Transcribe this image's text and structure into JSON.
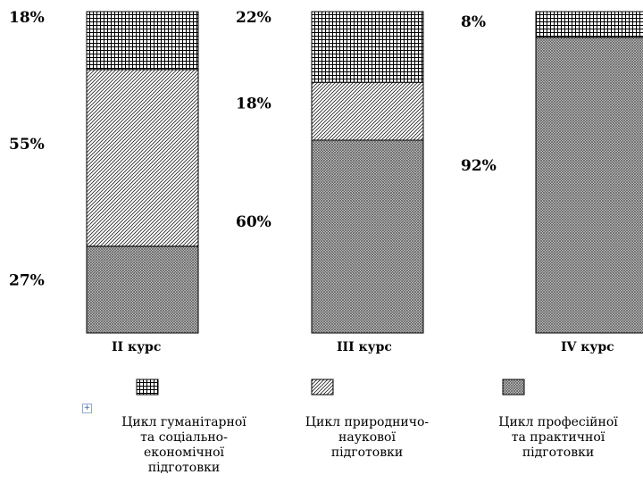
{
  "chart_data": {
    "type": "bar",
    "stacked": true,
    "categories": [
      "II курс",
      "III курс",
      "IV курс"
    ],
    "series": [
      {
        "name": "Цикл професійної та практичної підготовки",
        "pattern": "crosshatch",
        "values": [
          27,
          60,
          92
        ],
        "labels": [
          "27%",
          "60%",
          "92%"
        ]
      },
      {
        "name": "Цикл природничо-наукової підготовки",
        "pattern": "diagonal",
        "values": [
          55,
          18,
          0
        ],
        "labels": [
          "55%",
          "18%",
          ""
        ]
      },
      {
        "name": "Цикл гуманітарної та соціально-економічної підготовки",
        "pattern": "grid",
        "values": [
          18,
          22,
          8
        ],
        "labels": [
          "18%",
          "22%",
          "8%"
        ]
      }
    ],
    "ylim": [
      0,
      100
    ],
    "legend": [
      {
        "pattern": "grid",
        "lines": [
          "Цикл гуманітарної",
          "та соціально-",
          "економічної",
          "підготовки"
        ]
      },
      {
        "pattern": "diagonal",
        "lines": [
          "Цикл природничо-",
          "наукової",
          "підготовки"
        ]
      },
      {
        "pattern": "crosshatch",
        "lines": [
          "Цикл професійної",
          "та практичної",
          "підготовки"
        ]
      }
    ]
  }
}
